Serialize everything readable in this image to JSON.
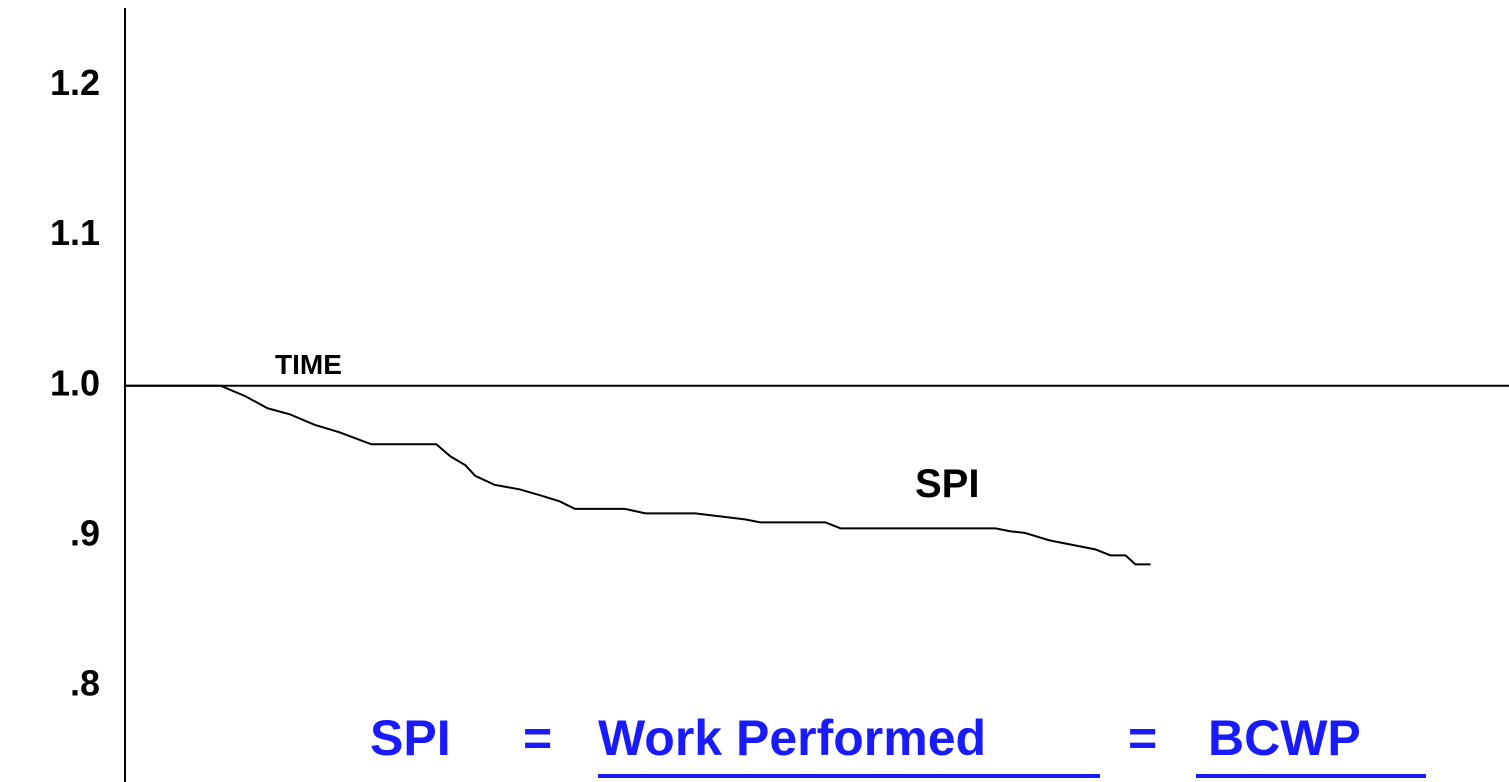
{
  "chart_data": {
    "type": "line",
    "x_label": "TIME",
    "annotation": "SPI",
    "formula": [
      "SPI",
      "=",
      "Work Performed",
      "=",
      "BCWP"
    ],
    "x": [
      0,
      6.9,
      8.7,
      10.3,
      11.9,
      13.7,
      15.5,
      17.8,
      22.5,
      23.5,
      24.6,
      25.3,
      26.7,
      28.5,
      30,
      31.4,
      32.5,
      36.1,
      37.6,
      41.2,
      43,
      44.8,
      45.9,
      50.6,
      51.7,
      62.9,
      64,
      65,
      66.8,
      70.1,
      71.2,
      72.3,
      73,
      74.1
    ],
    "series": [
      {
        "name": "SPI",
        "color": "#000000",
        "values": [
          1.0,
          1.0,
          0.993,
          0.985,
          0.981,
          0.974,
          0.969,
          0.961,
          0.961,
          0.953,
          0.947,
          0.94,
          0.934,
          0.931,
          0.927,
          0.923,
          0.918,
          0.918,
          0.915,
          0.915,
          0.913,
          0.911,
          0.909,
          0.909,
          0.905,
          0.905,
          0.903,
          0.902,
          0.897,
          0.891,
          0.887,
          0.887,
          0.881,
          0.881
        ]
      }
    ],
    "xlim": [
      0,
      100
    ],
    "ylim": [
      0.736,
      1.257
    ],
    "yticks": [
      1.2,
      1.1,
      {
        "value": 1.0,
        "label": "1.0"
      },
      {
        "value": 0.9,
        "label": ".9"
      },
      {
        "value": 0.8,
        "label": ".8"
      }
    ],
    "grid": false
  }
}
